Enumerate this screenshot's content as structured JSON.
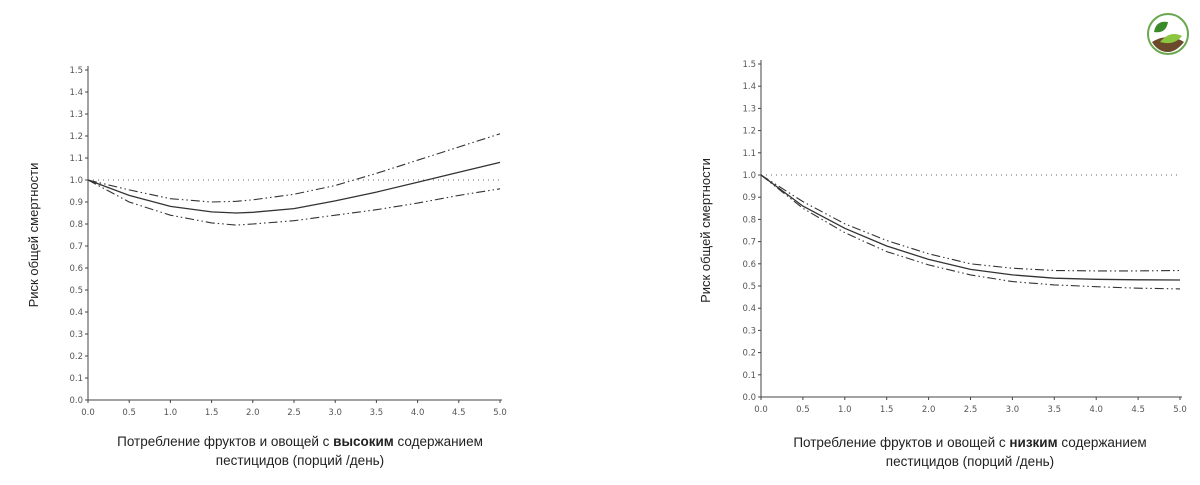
{
  "logo": {
    "name": "leaf-logo",
    "colors": [
      "#8cc63f",
      "#3a8a2a",
      "#5b3a1e"
    ]
  },
  "chart_data": [
    {
      "type": "line",
      "title": "",
      "ylabel": "Риск общей смертности",
      "xlabel_parts": [
        "Потребление фруктов и овощей с ",
        "высоким",
        " содержанием",
        "пестицидов (порций /день)"
      ],
      "xlim": [
        0.0,
        5.0
      ],
      "ylim": [
        0.0,
        1.5
      ],
      "xticks": [
        "0.0",
        "0.5",
        "1.0",
        "1.5",
        "2.0",
        "2.5",
        "3.0",
        "3.5",
        "4.0",
        "4.5",
        "5.0"
      ],
      "yticks": [
        "0.0",
        "0.1",
        "0.2",
        "0.3",
        "0.4",
        "0.5",
        "0.6",
        "0.7",
        "0.8",
        "0.9",
        "1.0",
        "1.1",
        "1.2",
        "1.3",
        "1.4",
        "1.5"
      ],
      "reference_line": 1.0,
      "x": [
        0.0,
        0.5,
        1.0,
        1.5,
        1.8,
        2.0,
        2.5,
        3.0,
        3.5,
        4.0,
        4.5,
        5.0
      ],
      "series": [
        {
          "role": "estimate",
          "style": "solid",
          "values": [
            1.0,
            0.93,
            0.88,
            0.855,
            0.85,
            0.853,
            0.87,
            0.905,
            0.945,
            0.99,
            1.035,
            1.08
          ]
        },
        {
          "role": "upper",
          "style": "dashdot",
          "values": [
            1.0,
            0.955,
            0.915,
            0.9,
            0.903,
            0.91,
            0.935,
            0.975,
            1.03,
            1.09,
            1.15,
            1.21
          ]
        },
        {
          "role": "lower",
          "style": "dashdot",
          "values": [
            1.0,
            0.9,
            0.84,
            0.805,
            0.795,
            0.8,
            0.815,
            0.84,
            0.865,
            0.895,
            0.93,
            0.96
          ]
        }
      ]
    },
    {
      "type": "line",
      "title": "",
      "ylabel": "Риск общей смертности",
      "xlabel_parts": [
        "Потребление фруктов и овощей с ",
        "низким",
        " содержанием",
        "пестицидов (порций /день)"
      ],
      "xlim": [
        0.0,
        5.0
      ],
      "ylim": [
        0.0,
        1.5
      ],
      "xticks": [
        "0.0",
        "0.5",
        "1.0",
        "1.5",
        "2.0",
        "2.5",
        "3.0",
        "3.5",
        "4.0",
        "4.5",
        "5.0"
      ],
      "yticks": [
        "0.0",
        "0.1",
        "0.2",
        "0.3",
        "0.4",
        "0.5",
        "0.6",
        "0.7",
        "0.8",
        "0.9",
        "1.0",
        "1.1",
        "1.2",
        "1.3",
        "1.4",
        "1.5"
      ],
      "reference_line": 1.0,
      "x": [
        0.0,
        0.5,
        1.0,
        1.5,
        2.0,
        2.5,
        3.0,
        3.5,
        4.0,
        4.5,
        5.0
      ],
      "series": [
        {
          "role": "estimate",
          "style": "solid",
          "values": [
            1.0,
            0.86,
            0.76,
            0.68,
            0.62,
            0.575,
            0.55,
            0.535,
            0.53,
            0.528,
            0.527
          ]
        },
        {
          "role": "upper",
          "style": "dashdot",
          "values": [
            1.0,
            0.88,
            0.78,
            0.705,
            0.645,
            0.6,
            0.58,
            0.57,
            0.568,
            0.568,
            0.57
          ]
        },
        {
          "role": "lower",
          "style": "dashdot",
          "values": [
            1.0,
            0.85,
            0.74,
            0.655,
            0.595,
            0.55,
            0.52,
            0.505,
            0.497,
            0.49,
            0.487
          ]
        }
      ]
    }
  ]
}
